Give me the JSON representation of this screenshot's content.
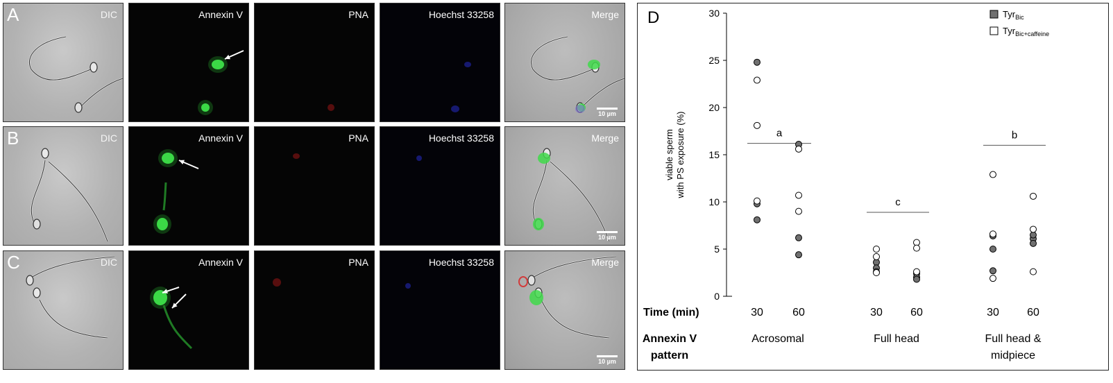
{
  "micrographs": {
    "channels": [
      "DIC",
      "Annexin V",
      "PNA",
      "Hoechst 33258",
      "Merge"
    ],
    "rows": [
      "A",
      "B",
      "C"
    ],
    "scale_bar": "10 µm"
  },
  "chart_data": {
    "type": "scatter",
    "panel_letter": "D",
    "ylabel_line1": "viable sperm",
    "ylabel_line2": "with PS exposure (%)",
    "ylim": [
      0,
      30
    ],
    "yticks": [
      0,
      5,
      10,
      15,
      20,
      25,
      30
    ],
    "row_labels": {
      "time": "Time (min)",
      "pattern_line1": "Annexin V",
      "pattern_line2": "pattern"
    },
    "groups": [
      {
        "name": "Acrosomal",
        "times": [
          "30",
          "60"
        ],
        "sig": "a"
      },
      {
        "name": "Full head",
        "times": [
          "30",
          "60"
        ],
        "sig": "c"
      },
      {
        "name_line1": "Full head &",
        "name_line2": "midpiece",
        "times": [
          "30",
          "60"
        ],
        "sig": "b"
      }
    ],
    "legend": [
      {
        "base": "Tyr",
        "sub": "Bic",
        "fill": "#707070"
      },
      {
        "base": "Tyr",
        "sub": "Bic+caffeine",
        "fill": "#ffffff"
      }
    ],
    "series": [
      {
        "name": "TyrBic",
        "fill": "#707070",
        "points": [
          {
            "group": 0,
            "time": 30,
            "y": 24.8
          },
          {
            "group": 0,
            "time": 30,
            "y": 9.8
          },
          {
            "group": 0,
            "time": 30,
            "y": 8.1
          },
          {
            "group": 0,
            "time": 60,
            "y": 16.1
          },
          {
            "group": 0,
            "time": 60,
            "y": 6.2
          },
          {
            "group": 0,
            "time": 60,
            "y": 4.4
          },
          {
            "group": 1,
            "time": 30,
            "y": 3.6
          },
          {
            "group": 1,
            "time": 30,
            "y": 3.0
          },
          {
            "group": 1,
            "time": 30,
            "y": 2.6
          },
          {
            "group": 1,
            "time": 60,
            "y": 2.4
          },
          {
            "group": 1,
            "time": 60,
            "y": 2.0
          },
          {
            "group": 1,
            "time": 60,
            "y": 1.8
          },
          {
            "group": 2,
            "time": 30,
            "y": 6.4
          },
          {
            "group": 2,
            "time": 30,
            "y": 5.0
          },
          {
            "group": 2,
            "time": 30,
            "y": 2.7
          },
          {
            "group": 2,
            "time": 60,
            "y": 6.1
          },
          {
            "group": 2,
            "time": 60,
            "y": 5.6
          },
          {
            "group": 2,
            "time": 60,
            "y": 6.5
          }
        ]
      },
      {
        "name": "TyrBic+caffeine",
        "fill": "#ffffff",
        "points": [
          {
            "group": 0,
            "time": 30,
            "y": 22.9
          },
          {
            "group": 0,
            "time": 30,
            "y": 18.1
          },
          {
            "group": 0,
            "time": 30,
            "y": 10.1
          },
          {
            "group": 0,
            "time": 60,
            "y": 15.6
          },
          {
            "group": 0,
            "time": 60,
            "y": 10.7
          },
          {
            "group": 0,
            "time": 60,
            "y": 9.0
          },
          {
            "group": 1,
            "time": 30,
            "y": 5.0
          },
          {
            "group": 1,
            "time": 30,
            "y": 4.2
          },
          {
            "group": 1,
            "time": 30,
            "y": 2.5
          },
          {
            "group": 1,
            "time": 60,
            "y": 5.7
          },
          {
            "group": 1,
            "time": 60,
            "y": 5.1
          },
          {
            "group": 1,
            "time": 60,
            "y": 2.6
          },
          {
            "group": 2,
            "time": 30,
            "y": 12.9
          },
          {
            "group": 2,
            "time": 30,
            "y": 6.6
          },
          {
            "group": 2,
            "time": 30,
            "y": 1.9
          },
          {
            "group": 2,
            "time": 60,
            "y": 10.6
          },
          {
            "group": 2,
            "time": 60,
            "y": 7.1
          },
          {
            "group": 2,
            "time": 60,
            "y": 2.6
          }
        ]
      }
    ]
  }
}
